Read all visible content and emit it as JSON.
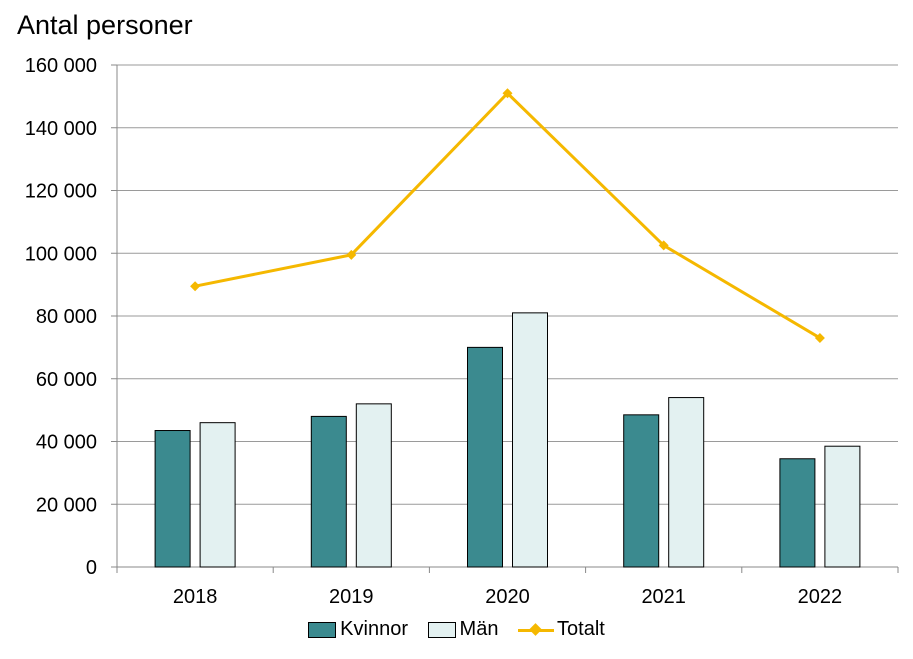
{
  "chart_data": {
    "type": "bar",
    "title": "Antal personer",
    "categories": [
      "2018",
      "2019",
      "2020",
      "2021",
      "2022"
    ],
    "ylim": [
      0,
      160000
    ],
    "yticks": [
      0,
      20000,
      40000,
      60000,
      80000,
      100000,
      120000,
      140000,
      160000
    ],
    "ytick_labels": [
      "0",
      "20 000",
      "40 000",
      "60 000",
      "80 000",
      "100 000",
      "120 000",
      "140 000",
      "160 000"
    ],
    "grid": true,
    "legend_position": "bottom",
    "series": [
      {
        "name": "Kvinnor",
        "kind": "bar",
        "color": "#3b8a8f",
        "values": [
          43500,
          48000,
          70000,
          48500,
          34500
        ]
      },
      {
        "name": "Män",
        "kind": "bar",
        "color": "#e3f1f1",
        "values": [
          46000,
          52000,
          81000,
          54000,
          38500
        ]
      },
      {
        "name": "Totalt",
        "kind": "line",
        "color": "#f5b800",
        "values": [
          89500,
          99500,
          151000,
          102500,
          73000
        ]
      }
    ]
  }
}
